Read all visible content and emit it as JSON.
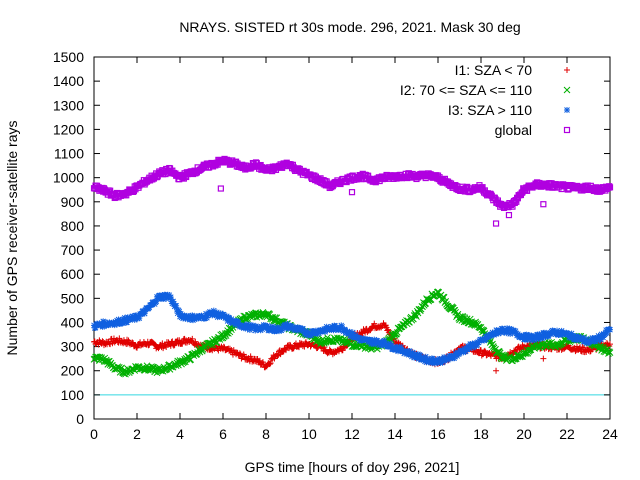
{
  "chart_data": {
    "type": "scatter",
    "title": "NRAYS. SISTED rt 30s mode. 296, 2021. Mask 30 deg",
    "xlabel": "GPS time [hours of doy 296, 2021]",
    "ylabel": "Number of GPS receiver-satellite rays",
    "xlim": [
      0,
      24
    ],
    "ylim": [
      0,
      1500
    ],
    "xticks": [
      0,
      2,
      4,
      6,
      8,
      10,
      12,
      14,
      16,
      18,
      20,
      22,
      24
    ],
    "yticks": [
      0,
      100,
      200,
      300,
      400,
      500,
      600,
      700,
      800,
      900,
      1000,
      1100,
      1200,
      1300,
      1400,
      1500
    ],
    "grid": false,
    "legend_position": "top-right",
    "reference_line": {
      "y": 100,
      "color": "#33d6e0"
    },
    "series": [
      {
        "name": "I1: SZA < 70",
        "marker": "plus",
        "color": "#e00000",
        "points": [
          [
            0,
            320
          ],
          [
            0.5,
            315
          ],
          [
            1,
            325
          ],
          [
            1.5,
            320
          ],
          [
            2,
            305
          ],
          [
            2.5,
            315
          ],
          [
            3,
            300
          ],
          [
            3.5,
            310
          ],
          [
            4,
            320
          ],
          [
            4.5,
            330
          ],
          [
            5,
            300
          ],
          [
            5.5,
            295
          ],
          [
            6,
            290
          ],
          [
            6.5,
            275
          ],
          [
            7,
            255
          ],
          [
            7.5,
            245
          ],
          [
            8,
            220
          ],
          [
            8.5,
            270
          ],
          [
            9,
            295
          ],
          [
            9.5,
            305
          ],
          [
            10,
            310
          ],
          [
            10.5,
            300
          ],
          [
            11,
            275
          ],
          [
            11.5,
            290
          ],
          [
            12,
            335
          ],
          [
            12.5,
            360
          ],
          [
            13,
            385
          ],
          [
            13.5,
            390
          ],
          [
            14,
            320
          ],
          [
            14.5,
            290
          ],
          [
            15,
            260
          ],
          [
            15.5,
            245
          ],
          [
            16,
            235
          ],
          [
            16.5,
            255
          ],
          [
            17,
            295
          ],
          [
            17.5,
            290
          ],
          [
            18,
            275
          ],
          [
            18.5,
            265
          ],
          [
            19,
            255
          ],
          [
            19.5,
            280
          ],
          [
            20,
            300
          ],
          [
            20.5,
            305
          ],
          [
            21,
            300
          ],
          [
            21.5,
            295
          ],
          [
            22,
            300
          ],
          [
            22.5,
            290
          ],
          [
            23,
            285
          ],
          [
            23.5,
            300
          ],
          [
            24,
            310
          ]
        ],
        "outliers": [
          [
            18.7,
            200
          ],
          [
            20.9,
            250
          ]
        ]
      },
      {
        "name": "I2: 70 <= SZA <= 110",
        "marker": "cross",
        "color": "#00b000",
        "points": [
          [
            0,
            255
          ],
          [
            0.5,
            245
          ],
          [
            1,
            210
          ],
          [
            1.5,
            195
          ],
          [
            2,
            215
          ],
          [
            2.5,
            210
          ],
          [
            3,
            200
          ],
          [
            3.5,
            215
          ],
          [
            4,
            235
          ],
          [
            4.5,
            255
          ],
          [
            5,
            290
          ],
          [
            5.5,
            315
          ],
          [
            6,
            345
          ],
          [
            6.5,
            385
          ],
          [
            7,
            420
          ],
          [
            7.5,
            430
          ],
          [
            8,
            435
          ],
          [
            8.5,
            410
          ],
          [
            9,
            385
          ],
          [
            9.5,
            365
          ],
          [
            10,
            350
          ],
          [
            10.5,
            320
          ],
          [
            11,
            330
          ],
          [
            11.5,
            325
          ],
          [
            12,
            310
          ],
          [
            12.5,
            305
          ],
          [
            13,
            295
          ],
          [
            13.5,
            310
          ],
          [
            14,
            355
          ],
          [
            14.5,
            395
          ],
          [
            15,
            435
          ],
          [
            15.5,
            495
          ],
          [
            16,
            525
          ],
          [
            16.5,
            470
          ],
          [
            17,
            420
          ],
          [
            17.5,
            405
          ],
          [
            18,
            380
          ],
          [
            18.5,
            310
          ],
          [
            19,
            255
          ],
          [
            19.5,
            250
          ],
          [
            20,
            270
          ],
          [
            20.5,
            300
          ],
          [
            21,
            310
          ],
          [
            21.5,
            305
          ],
          [
            22,
            325
          ],
          [
            22.5,
            335
          ],
          [
            23,
            325
          ],
          [
            23.5,
            300
          ],
          [
            24,
            275
          ]
        ]
      },
      {
        "name": "I3: SZA > 110",
        "marker": "star",
        "color": "#1060e0",
        "points": [
          [
            0,
            385
          ],
          [
            0.5,
            395
          ],
          [
            1,
            400
          ],
          [
            1.5,
            410
          ],
          [
            2,
            420
          ],
          [
            2.5,
            455
          ],
          [
            3,
            505
          ],
          [
            3.5,
            510
          ],
          [
            4,
            430
          ],
          [
            4.5,
            420
          ],
          [
            5,
            420
          ],
          [
            5.5,
            440
          ],
          [
            6,
            425
          ],
          [
            6.5,
            400
          ],
          [
            7,
            385
          ],
          [
            7.5,
            375
          ],
          [
            8,
            380
          ],
          [
            8.5,
            370
          ],
          [
            9,
            385
          ],
          [
            9.5,
            370
          ],
          [
            10,
            355
          ],
          [
            10.5,
            365
          ],
          [
            11,
            375
          ],
          [
            11.5,
            380
          ],
          [
            12,
            350
          ],
          [
            12.5,
            325
          ],
          [
            13,
            320
          ],
          [
            13.5,
            315
          ],
          [
            14,
            295
          ],
          [
            14.5,
            280
          ],
          [
            15,
            260
          ],
          [
            15.5,
            245
          ],
          [
            16,
            240
          ],
          [
            16.5,
            250
          ],
          [
            17,
            275
          ],
          [
            17.5,
            300
          ],
          [
            18,
            320
          ],
          [
            18.5,
            350
          ],
          [
            19,
            370
          ],
          [
            19.5,
            360
          ],
          [
            20,
            340
          ],
          [
            20.5,
            335
          ],
          [
            21,
            350
          ],
          [
            21.5,
            360
          ],
          [
            22,
            350
          ],
          [
            22.5,
            335
          ],
          [
            23,
            320
          ],
          [
            23.5,
            335
          ],
          [
            24,
            370
          ]
        ]
      },
      {
        "name": "global",
        "marker": "square",
        "color": "#b000e0",
        "points": [
          [
            0,
            960
          ],
          [
            0.5,
            945
          ],
          [
            1,
            925
          ],
          [
            1.5,
            935
          ],
          [
            2,
            960
          ],
          [
            2.5,
            990
          ],
          [
            3,
            1015
          ],
          [
            3.5,
            1030
          ],
          [
            4,
            1000
          ],
          [
            4.5,
            1020
          ],
          [
            5,
            1040
          ],
          [
            5.5,
            1055
          ],
          [
            6,
            1070
          ],
          [
            6.5,
            1060
          ],
          [
            7,
            1040
          ],
          [
            7.5,
            1055
          ],
          [
            8,
            1030
          ],
          [
            8.5,
            1040
          ],
          [
            9,
            1060
          ],
          [
            9.5,
            1030
          ],
          [
            10,
            1010
          ],
          [
            10.5,
            990
          ],
          [
            11,
            965
          ],
          [
            11.5,
            985
          ],
          [
            12,
            1000
          ],
          [
            12.5,
            1005
          ],
          [
            13,
            990
          ],
          [
            13.5,
            1000
          ],
          [
            14,
            1005
          ],
          [
            14.5,
            1010
          ],
          [
            15,
            1005
          ],
          [
            15.5,
            1010
          ],
          [
            16,
            1000
          ],
          [
            16.5,
            975
          ],
          [
            17,
            955
          ],
          [
            17.5,
            950
          ],
          [
            18,
            960
          ],
          [
            18.5,
            920
          ],
          [
            19,
            880
          ],
          [
            19.5,
            890
          ],
          [
            20,
            950
          ],
          [
            20.5,
            970
          ],
          [
            21,
            970
          ],
          [
            21.5,
            965
          ],
          [
            22,
            960
          ],
          [
            22.5,
            955
          ],
          [
            23,
            960
          ],
          [
            23.5,
            950
          ],
          [
            24,
            960
          ]
        ],
        "outliers": [
          [
            5.9,
            955
          ],
          [
            12,
            940
          ],
          [
            18.7,
            810
          ],
          [
            19.3,
            845
          ],
          [
            20.9,
            890
          ],
          [
            23.6,
            945
          ]
        ]
      }
    ]
  }
}
